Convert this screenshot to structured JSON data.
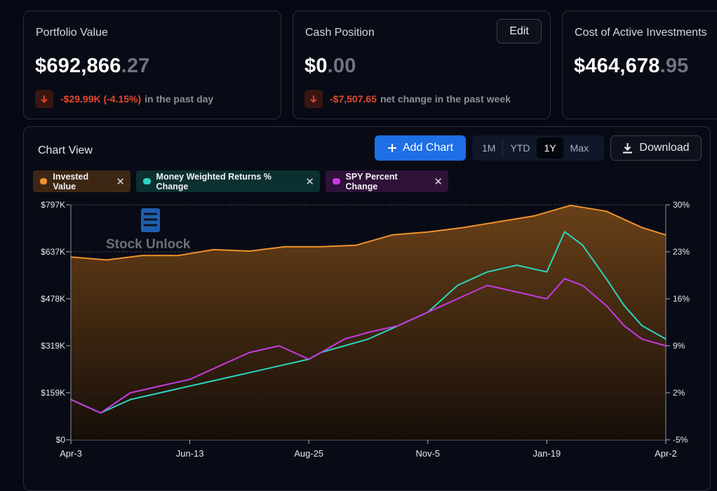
{
  "cards": {
    "portfolio": {
      "title": "Portfolio Value",
      "value_main": "$692,866",
      "value_cents": ".27",
      "change_value": "-$29.99K (-4.15%)",
      "change_text": "in the past day"
    },
    "cash": {
      "title": "Cash Position",
      "value_main": "$0",
      "value_cents": ".00",
      "change_value": "-$7,507.65",
      "change_text": "net change in the past week",
      "edit_label": "Edit"
    },
    "cost": {
      "title": "Cost of Active Investments",
      "value_main": "$464,678",
      "value_cents": ".95"
    }
  },
  "chart_panel": {
    "title": "Chart View",
    "add_label": "Add Chart",
    "download_label": "Download",
    "ranges": [
      "1M",
      "YTD",
      "1Y",
      "Max"
    ],
    "active_range": "1Y",
    "chips": [
      {
        "label": "Invested Value",
        "color": "#f0922d",
        "bg": "#3d2714"
      },
      {
        "label": "Money Weighted Returns % Change",
        "color": "#2dd4bf",
        "bg": "#0c2f30"
      },
      {
        "label": "SPY Percent Change",
        "color": "#c53be0",
        "bg": "#2f1238"
      }
    ],
    "watermark": "Stock Unlock"
  },
  "colors": {
    "accent": "#1f6fe5",
    "negative": "#e5492c",
    "invested": "#f0922d",
    "mwr": "#2dd4bf",
    "spy": "#c53be0"
  },
  "chart_data": {
    "type": "line",
    "x_labels": [
      "Apr-3",
      "Jun-13",
      "Aug-25",
      "Nov-5",
      "Jan-19",
      "Apr-2"
    ],
    "left_axis": {
      "ticks": [
        "$0",
        "$159K",
        "$319K",
        "$478K",
        "$637K",
        "$797K"
      ],
      "range": [
        0,
        797
      ]
    },
    "right_axis": {
      "ticks": [
        "-5%",
        "2%",
        "9%",
        "16%",
        "23%",
        "30%"
      ],
      "range": [
        -5,
        30
      ]
    },
    "grid": true,
    "series": [
      {
        "name": "Invested Value",
        "axis": "left",
        "unit": "$K",
        "x": [
          0,
          0.06,
          0.12,
          0.18,
          0.24,
          0.3,
          0.36,
          0.42,
          0.48,
          0.54,
          0.6,
          0.66,
          0.72,
          0.78,
          0.84,
          0.9,
          0.96,
          1.0
        ],
        "values": [
          620,
          610,
          625,
          625,
          645,
          640,
          655,
          655,
          660,
          695,
          705,
          720,
          740,
          760,
          795,
          775,
          720,
          695
        ]
      },
      {
        "name": "Money Weighted Returns % Change",
        "axis": "right",
        "unit": "%",
        "x": [
          0,
          0.05,
          0.1,
          0.15,
          0.2,
          0.25,
          0.3,
          0.35,
          0.4,
          0.42,
          0.46,
          0.5,
          0.55,
          0.6,
          0.65,
          0.7,
          0.75,
          0.8,
          0.83,
          0.86,
          0.9,
          0.93,
          0.96,
          1.0
        ],
        "values": [
          1,
          -1,
          1,
          2,
          3,
          4,
          5,
          6,
          7,
          8,
          9,
          10,
          12,
          14,
          18,
          20,
          21,
          20,
          26,
          24,
          19,
          15,
          12,
          10
        ]
      },
      {
        "name": "SPY Percent Change",
        "axis": "right",
        "unit": "%",
        "x": [
          0,
          0.05,
          0.1,
          0.15,
          0.2,
          0.25,
          0.3,
          0.35,
          0.4,
          0.42,
          0.46,
          0.5,
          0.55,
          0.6,
          0.65,
          0.7,
          0.75,
          0.8,
          0.83,
          0.86,
          0.9,
          0.93,
          0.96,
          1.0
        ],
        "values": [
          1,
          -1,
          2,
          3,
          4,
          6,
          8,
          9,
          7,
          8,
          10,
          11,
          12,
          14,
          16,
          18,
          17,
          16,
          19,
          18,
          15,
          12,
          10,
          9
        ]
      }
    ]
  }
}
